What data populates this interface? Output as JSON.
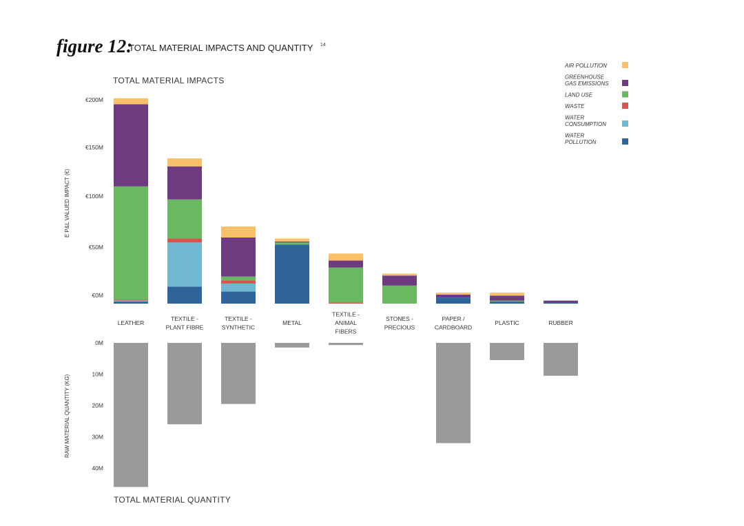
{
  "figure": {
    "label": "figure 12:",
    "title": "TOTAL MATERIAL IMPACTS AND QUANTITY",
    "footnote": "14"
  },
  "colors": {
    "air_pollution": "#f8c069",
    "greenhouse_gas_emissions": "#6e3a80",
    "land_use": "#6bb863",
    "waste": "#d9534f",
    "water_consumption": "#6fb8d0",
    "water_pollution": "#2e6499",
    "quantity": "#9a9a9a"
  },
  "chart_data": [
    {
      "type": "bar",
      "stacked": true,
      "title": "TOTAL MATERIAL IMPACTS",
      "ylabel": "E P&L VALUED IMPACT (€)",
      "yticks": [
        "€0M",
        "€50M",
        "€100M",
        "€150M",
        "€200M"
      ],
      "ylim": [
        0,
        200
      ],
      "unit": "€M",
      "categories": [
        [
          "LEATHER"
        ],
        [
          "TEXTILE -",
          "PLANT FIBRE"
        ],
        [
          "TEXTILE -",
          "SYNTHETIC"
        ],
        [
          "METAL"
        ],
        [
          "TEXTILE -",
          "ANIMAL",
          "FIBERS"
        ],
        [
          "STONES -",
          "PRECIOUS"
        ],
        [
          "PAPER /",
          "CARDBOARD"
        ],
        [
          "PLASTIC"
        ],
        [
          "RUBBER"
        ]
      ],
      "legend_position": "top-right",
      "series": [
        {
          "name": "WATER POLLUTION",
          "legend_lines": [
            "WATER",
            "POLLUTION"
          ],
          "color_key": "water_pollution",
          "values": [
            2,
            17,
            12,
            59,
            0,
            0,
            6,
            2,
            1
          ]
        },
        {
          "name": "WATER CONSUMPTION",
          "legend_lines": [
            "WATER",
            "CONSUMPTION"
          ],
          "color_key": "water_consumption",
          "values": [
            1,
            44,
            8,
            0,
            0,
            0,
            0,
            0,
            0
          ]
        },
        {
          "name": "WASTE",
          "legend_lines": [
            "WASTE"
          ],
          "color_key": "waste",
          "values": [
            1,
            4,
            3,
            0,
            1,
            0,
            0,
            0,
            0
          ]
        },
        {
          "name": "LAND USE",
          "legend_lines": [
            "LAND USE"
          ],
          "color_key": "land_use",
          "values": [
            113,
            39,
            4,
            2,
            35,
            18,
            0,
            1,
            0
          ]
        },
        {
          "name": "GREENHOUSE GAS EMISSIONS",
          "legend_lines": [
            "GREENHOUSE",
            "GAS EMISSIONS"
          ],
          "color_key": "greenhouse_gas_emissions",
          "values": [
            82,
            33,
            39,
            1,
            7,
            10,
            3,
            5,
            2
          ]
        },
        {
          "name": "AIR POLLUTION",
          "legend_lines": [
            "AIR POLLUTION"
          ],
          "color_key": "air_pollution",
          "values": [
            6,
            8,
            11,
            3,
            7,
            2,
            2,
            3,
            0
          ]
        }
      ],
      "legend_order": [
        "AIR POLLUTION",
        "GREENHOUSE GAS EMISSIONS",
        "LAND USE",
        "WASTE",
        "WATER CONSUMPTION",
        "WATER POLLUTION"
      ]
    },
    {
      "type": "bar",
      "orientation": "downward",
      "title": "TOTAL MATERIAL QUANTITY",
      "ylabel": "RAW MATERIAL QUANTITY (KG)",
      "yticks": [
        "0M",
        "10M",
        "20M",
        "30M",
        "40M"
      ],
      "ylim": [
        0,
        46
      ],
      "unit": "M kg",
      "values": [
        46,
        26,
        19.5,
        1.5,
        0.7,
        0,
        32,
        5.5,
        10.5
      ]
    }
  ]
}
